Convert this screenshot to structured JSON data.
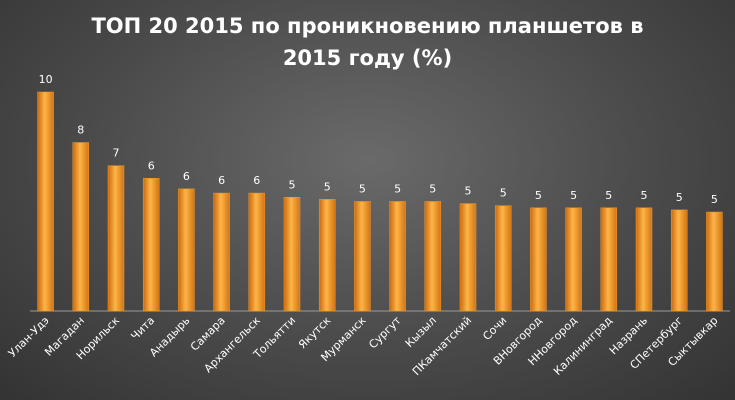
{
  "chart_data": {
    "type": "bar",
    "title": "ТОП 20 2015 по проникновению планшетов в 2015 году (%)",
    "categories": [
      "Улан-Удэ",
      "Магадан",
      "Норильск",
      "Чита",
      "Анадырь",
      "Самара",
      "Архангельск",
      "Тольятти",
      "Якутск",
      "Мурманск",
      "Сургут",
      "Кызыл",
      "ПКамчатский",
      "Сочи",
      "ВНовгород",
      "ННовгород",
      "Калининград",
      "Назрань",
      "СПетербург",
      "Сыктывкар"
    ],
    "values": [
      10.4,
      8.0,
      6.9,
      6.3,
      5.8,
      5.6,
      5.6,
      5.4,
      5.3,
      5.2,
      5.2,
      5.2,
      5.1,
      5.0,
      4.9,
      4.9,
      4.9,
      4.9,
      4.8,
      4.7
    ],
    "value_labels": [
      "10",
      "8",
      "7",
      "6",
      "6",
      "6",
      "6",
      "5",
      "5",
      "5",
      "5",
      "5",
      "5",
      "5",
      "5",
      "5",
      "5",
      "5",
      "5",
      "5"
    ],
    "color": "#f39a2a"
  }
}
